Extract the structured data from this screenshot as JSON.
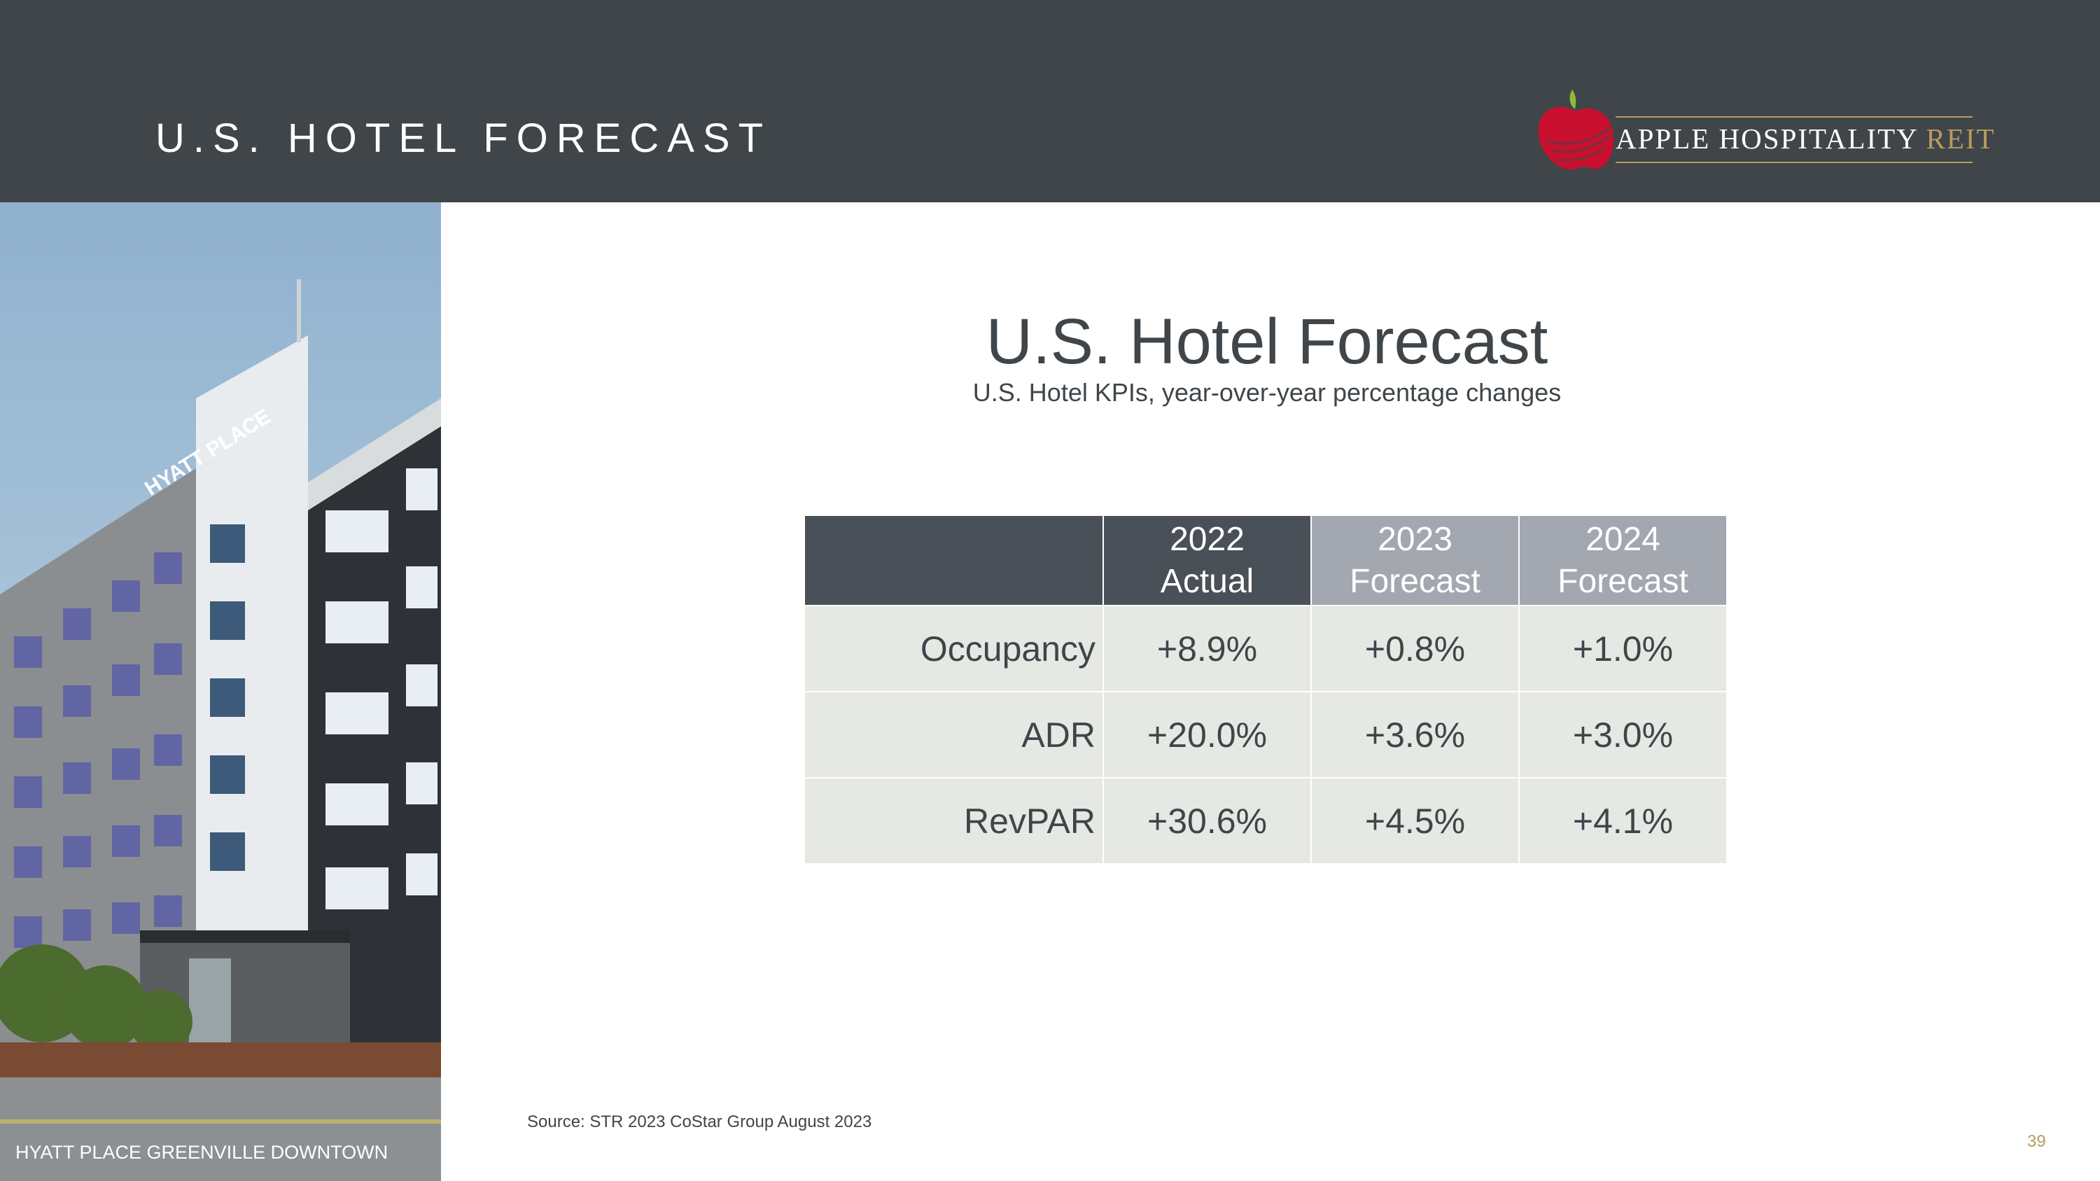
{
  "header": {
    "title": "U.S. HOTEL FORECAST",
    "logo_text": "APPLE HOSPITALITY",
    "logo_text_accent": "REIT"
  },
  "photo": {
    "caption": "HYATT PLACE GREENVILLE DOWNTOWN",
    "sign_text": "HYATT PLACE"
  },
  "main": {
    "title": "U.S. Hotel Forecast",
    "subtitle": "U.S. Hotel KPIs, year-over-year percentage changes"
  },
  "table": {
    "columns": [
      {
        "year": "2022",
        "label": "Actual"
      },
      {
        "year": "2023",
        "label": "Forecast"
      },
      {
        "year": "2024",
        "label": "Forecast"
      }
    ],
    "rows": [
      {
        "label": "Occupancy",
        "values": [
          "+8.9%",
          "+0.8%",
          "+1.0%"
        ]
      },
      {
        "label": "ADR",
        "values": [
          "+20.0%",
          "+3.6%",
          "+3.0%"
        ]
      },
      {
        "label": "RevPAR",
        "values": [
          "+30.6%",
          "+4.5%",
          "+4.1%"
        ]
      }
    ]
  },
  "footer": {
    "source": "Source: STR 2023 CoStar Group August 2023",
    "page_number": "39"
  },
  "colors": {
    "header_bg": "#3f4549",
    "accent_gold": "#b89b5e",
    "table_dark": "#4a5057",
    "table_light_header": "#a3a8b0",
    "table_cell": "#e6e8e3"
  }
}
